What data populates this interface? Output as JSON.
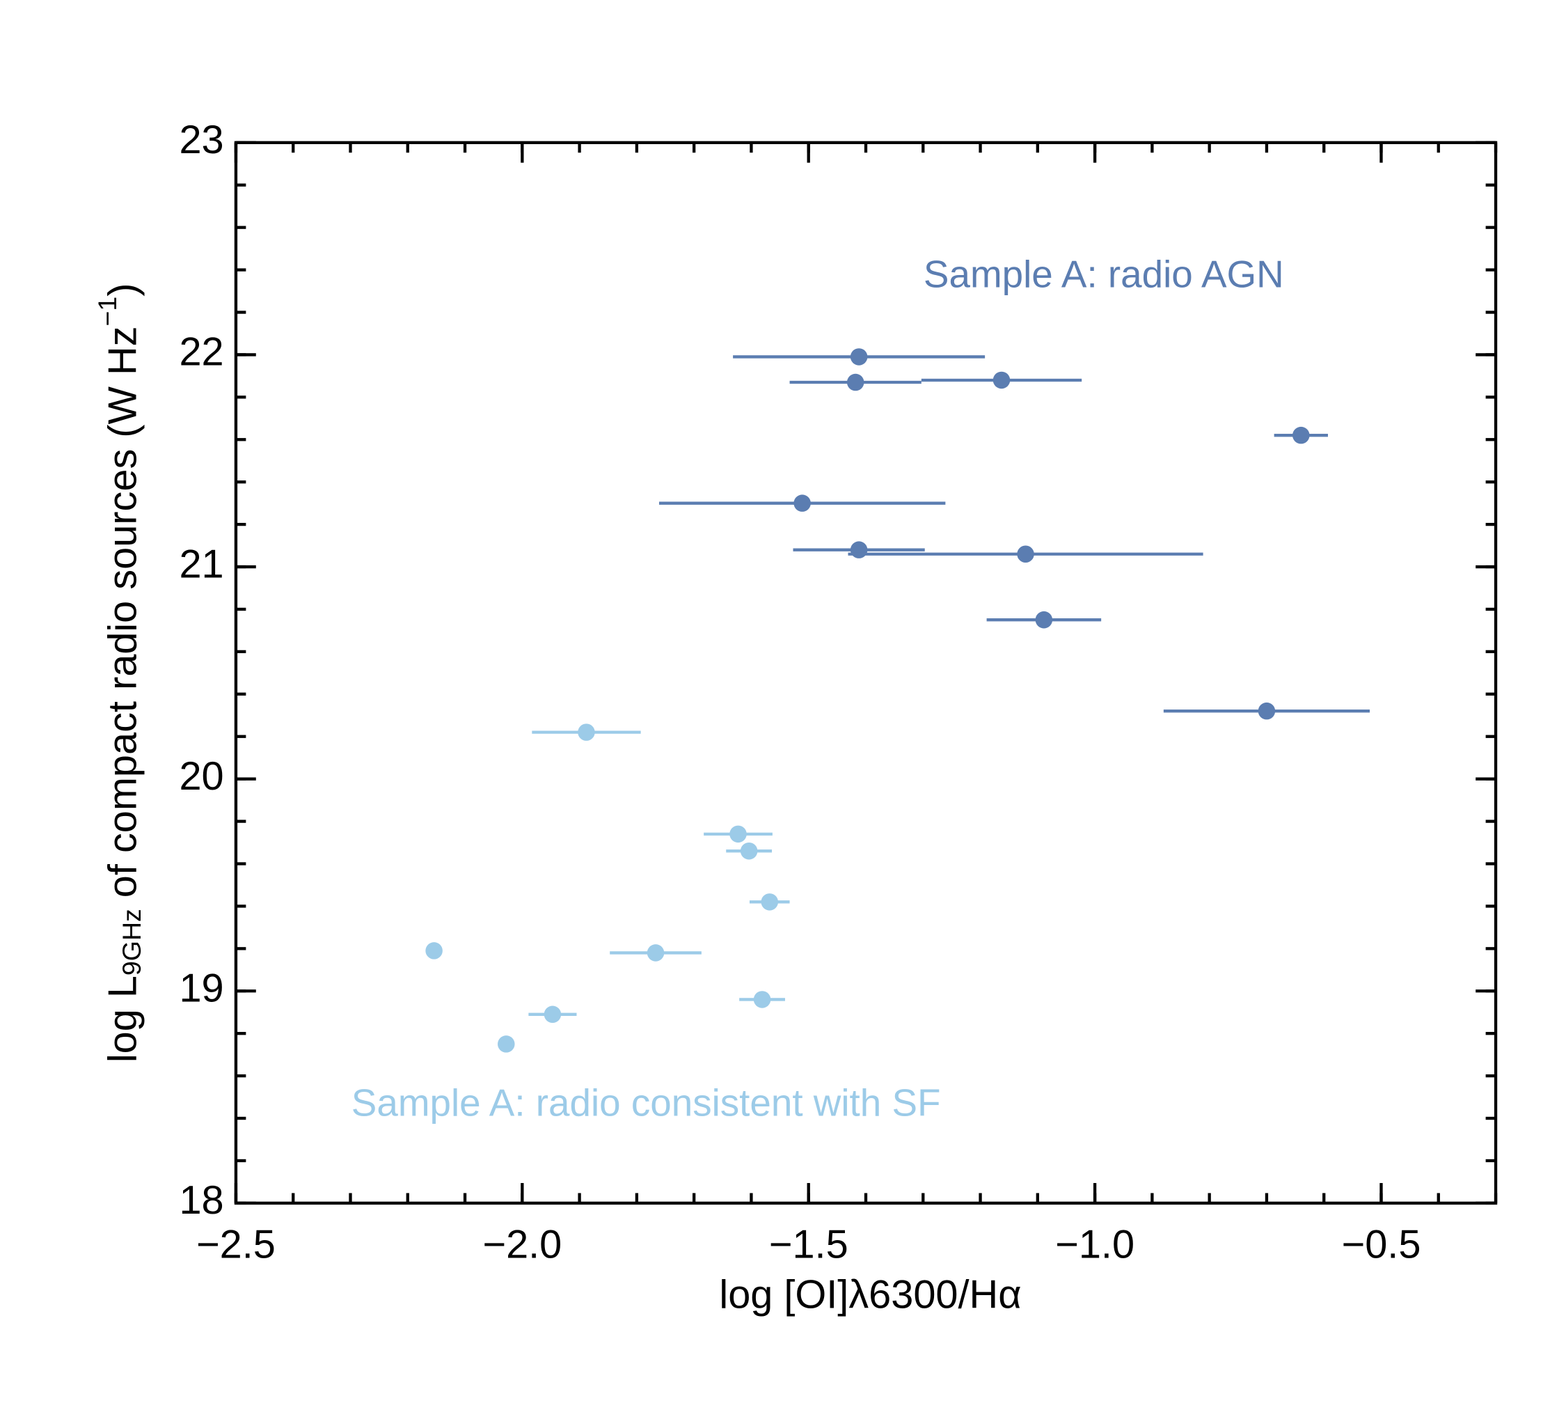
{
  "chart_data": {
    "type": "scatter",
    "xlabel": "log [OI]λ6300/Hα",
    "ylabel": {
      "main": "log L",
      "sub": "9GHz",
      "rest": " of compact radio sources (W Hz",
      "sup": "−1",
      "end": ")"
    },
    "xlim": [
      -2.5,
      -0.3
    ],
    "ylim": [
      18,
      23
    ],
    "xticks": [
      {
        "value": -2.5,
        "label": "−2.5"
      },
      {
        "value": -2.0,
        "label": "−2.0"
      },
      {
        "value": -1.5,
        "label": "−1.5"
      },
      {
        "value": -1.0,
        "label": "−1.0"
      },
      {
        "value": -0.5,
        "label": "−0.5"
      }
    ],
    "yticks": [
      18,
      19,
      20,
      21,
      22,
      23
    ],
    "xminor_step": 0.1,
    "yminor_step": 0.2,
    "series": [
      {
        "name": "Sample A: radio AGN",
        "color": "#5b7db1",
        "x": [
          -1.412,
          -1.418,
          -1.163,
          -0.64,
          -1.511,
          -1.412,
          -1.121,
          -1.089,
          -0.7
        ],
        "values": [
          21.99,
          21.87,
          21.88,
          21.62,
          21.3,
          21.08,
          21.06,
          20.75,
          20.32
        ],
        "xerr": [
          0.22,
          0.115,
          0.14,
          0.047,
          0.25,
          0.115,
          0.31,
          0.1,
          0.18
        ]
      },
      {
        "name": "Sample A: radio consistent with SF",
        "color": "#9ccbe8",
        "x": [
          -1.888,
          -1.623,
          -1.604,
          -1.568,
          -2.154,
          -1.767,
          -1.581,
          -1.947,
          -2.028
        ],
        "values": [
          20.22,
          19.74,
          19.66,
          19.42,
          19.19,
          19.18,
          18.96,
          18.89,
          18.75
        ],
        "xerr": [
          0.095,
          0.06,
          0.04,
          0.035,
          null,
          0.08,
          0.04,
          0.042,
          null
        ]
      }
    ]
  }
}
